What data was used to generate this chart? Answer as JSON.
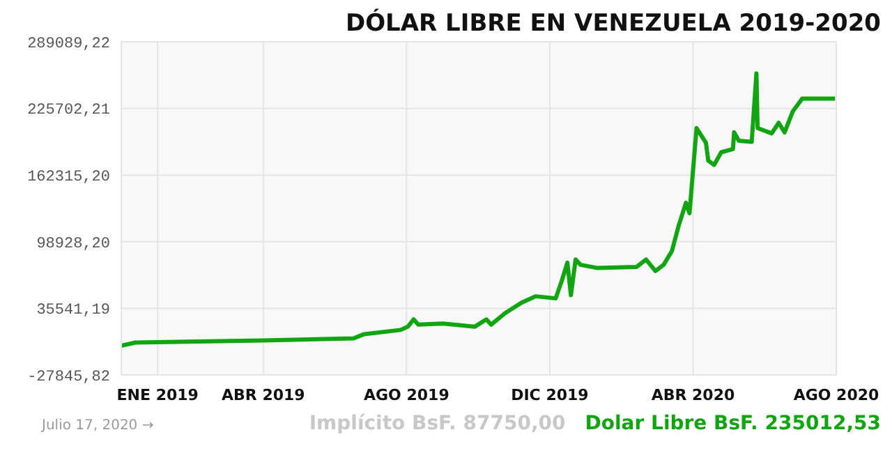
{
  "chart_data": {
    "type": "line",
    "title": "DÓLAR LIBRE EN VENEZUELA 2019-2020",
    "x": [
      "2018-12-01",
      "2018-12-13",
      "2019-04-01",
      "2019-06-17",
      "2019-06-26",
      "2019-07-27",
      "2019-08-02",
      "2019-08-07",
      "2019-08-11",
      "2019-09-01",
      "2019-09-28",
      "2019-10-08",
      "2019-10-12",
      "2019-10-24",
      "2019-11-07",
      "2019-11-19",
      "2019-12-06",
      "2019-12-11",
      "2019-12-16",
      "2019-12-19",
      "2019-12-23",
      "2019-12-27",
      "2020-01-10",
      "2020-02-13",
      "2020-02-21",
      "2020-02-29",
      "2020-03-07",
      "2020-03-14",
      "2020-03-20",
      "2020-03-26",
      "2020-03-29",
      "2020-04-04",
      "2020-04-12",
      "2020-04-14",
      "2020-04-19",
      "2020-04-25",
      "2020-05-05",
      "2020-05-06",
      "2020-05-10",
      "2020-05-21",
      "2020-05-25",
      "2020-05-26",
      "2020-06-07",
      "2020-06-13",
      "2020-06-18",
      "2020-06-25",
      "2020-07-03",
      "2020-07-31"
    ],
    "series": [
      {
        "color": "#12a512",
        "values": [
          0,
          3000,
          5000,
          7000,
          11000,
          15000,
          18000,
          25000,
          20000,
          21000,
          18000,
          25000,
          20000,
          31000,
          41000,
          47000,
          45000,
          61000,
          79000,
          48000,
          82000,
          77000,
          74000,
          75000,
          82000,
          71000,
          77000,
          90000,
          115000,
          136000,
          126000,
          207000,
          193000,
          176000,
          172000,
          184000,
          187000,
          203000,
          195000,
          194000,
          259000,
          207000,
          202000,
          212000,
          203000,
          223000,
          235000,
          235000
        ]
      }
    ],
    "xlim": [
      "2018-12-01",
      "2020-08-01"
    ],
    "xticks": [
      {
        "value": "2019-01-01",
        "label": "ENE 2019"
      },
      {
        "value": "2019-04-01",
        "label": "ABR 2019"
      },
      {
        "value": "2019-08-01",
        "label": "AGO 2019"
      },
      {
        "value": "2019-12-01",
        "label": "DIC 2019"
      },
      {
        "value": "2020-04-01",
        "label": "ABR 2020"
      },
      {
        "value": "2020-08-01",
        "label": "AGO 2020"
      }
    ],
    "ylim": [
      -27845.82,
      289089.22
    ],
    "yticks": [
      {
        "value": -27845.82,
        "label": "-27845,82"
      },
      {
        "value": 35541.19,
        "label": "35541,19"
      },
      {
        "value": 98928.2,
        "label": "98928,20"
      },
      {
        "value": 162315.2,
        "label": "162315,20"
      },
      {
        "value": 225702.21,
        "label": "225702,21"
      },
      {
        "value": 289089.22,
        "label": "289089,22"
      }
    ],
    "grid": true,
    "annotations": [
      "Julio 17, 2020 →",
      "Implícito BsF. 87750,00",
      "Dolar Libre BsF. 235012,53"
    ]
  }
}
